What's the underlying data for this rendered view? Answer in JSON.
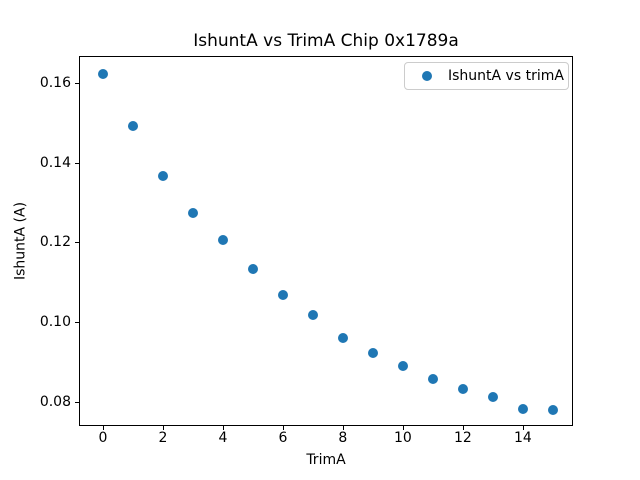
{
  "chart_data": {
    "type": "scatter",
    "title": "IshuntA vs TrimA Chip 0x1789a",
    "xlabel": "TrimA",
    "ylabel": "IshuntA (A)",
    "series": [
      {
        "name": "IshuntA vs trimA",
        "color": "#1f77b4",
        "x": [
          0,
          1,
          2,
          3,
          4,
          5,
          6,
          7,
          8,
          9,
          10,
          11,
          12,
          13,
          14,
          15
        ],
        "y": [
          0.1622,
          0.1493,
          0.1367,
          0.1274,
          0.1206,
          0.1133,
          0.1067,
          0.1017,
          0.0961,
          0.0923,
          0.0889,
          0.0857,
          0.0831,
          0.0812,
          0.0782,
          0.0779
        ]
      }
    ],
    "xlim": [
      -0.8,
      15.67
    ],
    "ylim": [
      0.0739,
      0.1668
    ],
    "xticks": {
      "values": [
        0,
        2,
        4,
        6,
        8,
        10,
        12,
        14
      ],
      "labels": [
        "0",
        "2",
        "4",
        "6",
        "8",
        "10",
        "12",
        "14"
      ]
    },
    "yticks": {
      "values": [
        0.08,
        0.1,
        0.12,
        0.14,
        0.16
      ],
      "labels": [
        "0.08",
        "0.10",
        "0.12",
        "0.14",
        "0.16"
      ]
    },
    "grid": false,
    "legend_position": "upper right",
    "colors": {
      "marker": "#1f77b4",
      "spine": "#000000",
      "legend_border": "#cccccc",
      "background": "#ffffff"
    }
  }
}
